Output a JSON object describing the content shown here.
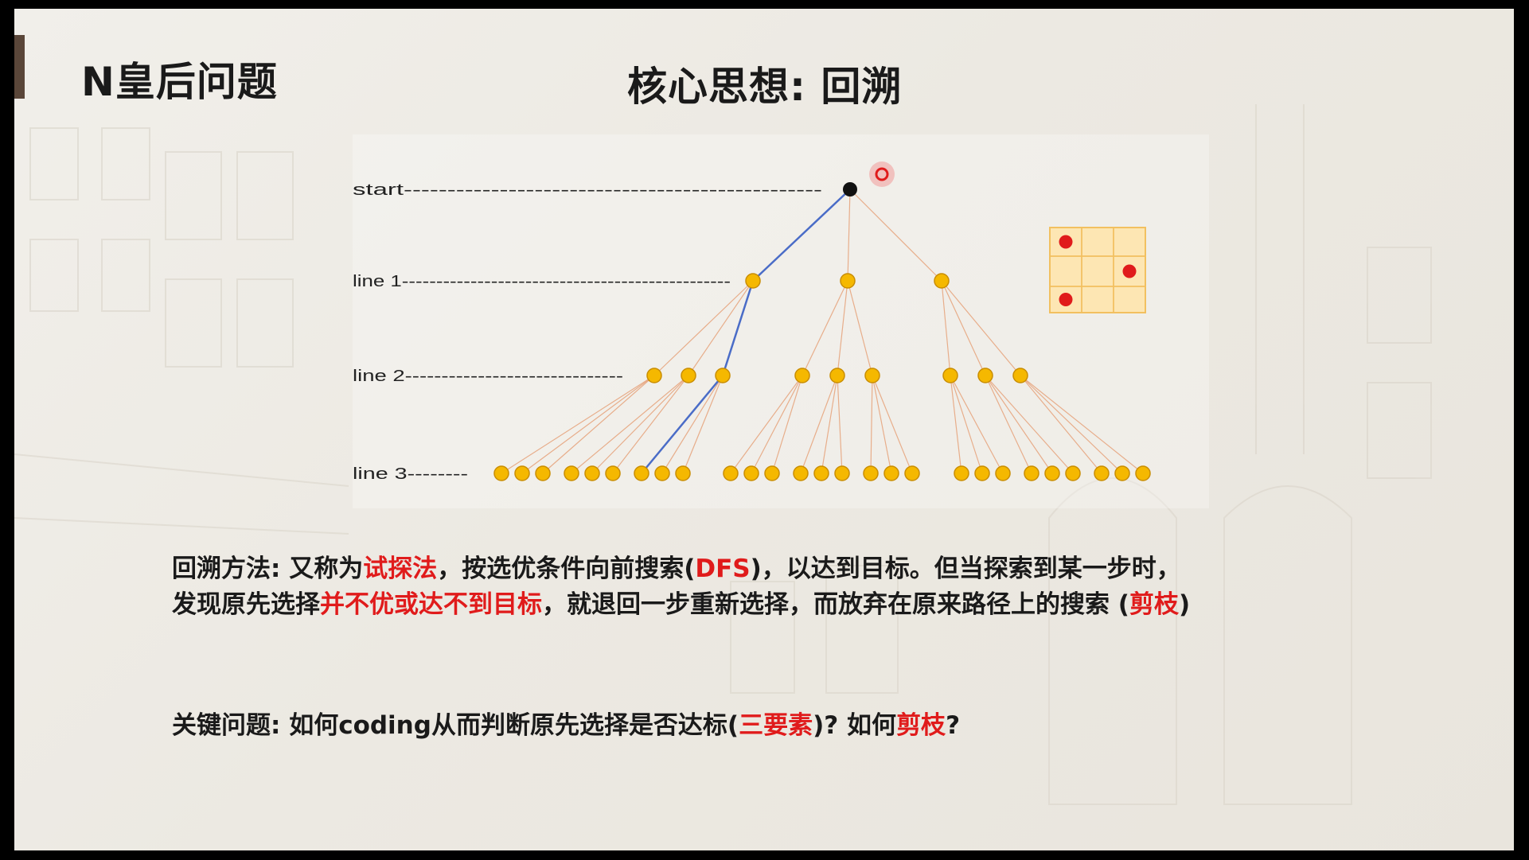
{
  "slide": {
    "title": "N皇后问题",
    "heading": "核心思想: 回溯"
  },
  "diagram": {
    "levels": [
      {
        "label": "start",
        "dashes": "------------------------------------------------"
      },
      {
        "label": "line 1",
        "dashes": "------------------------------------------------"
      },
      {
        "label": "line 2",
        "dashes": "------------------------------"
      },
      {
        "label": "line 3",
        "dashes": "--------"
      }
    ],
    "branching": 3,
    "depth": 3,
    "highlighted_path": [
      0,
      2,
      0
    ],
    "colors": {
      "node_fill": "#f5b800",
      "node_stroke": "#c98d00",
      "root_fill": "#111111",
      "edge": "#e6a27a",
      "path": "#4a6cc7",
      "queen": "#e01b1b",
      "board_fill": "#fde6b3",
      "board_stroke": "#f2c060"
    },
    "board": {
      "size": 3,
      "queens": [
        [
          0,
          0
        ],
        [
          1,
          2
        ],
        [
          2,
          0
        ]
      ]
    }
  },
  "paragraph": {
    "line1": [
      {
        "text": "回溯方法: 又称为",
        "hl": false
      },
      {
        "text": "试探法",
        "hl": true
      },
      {
        "text": "，按选优条件向前搜索(",
        "hl": false
      },
      {
        "text": "DFS",
        "hl": true
      },
      {
        "text": ")，以达到目标。但当探索到某一步时，",
        "hl": false
      }
    ],
    "line2": [
      {
        "text": "发现原先选择",
        "hl": false
      },
      {
        "text": "并不优或达不到目标",
        "hl": true
      },
      {
        "text": "，就退回一步重新选择，而放弃在原来路径上的搜索 (",
        "hl": false
      },
      {
        "text": "剪枝",
        "hl": true
      },
      {
        "text": ")",
        "hl": false
      }
    ]
  },
  "question": [
    {
      "text": "关键问题: 如何coding从而判断原先选择是否达标(",
      "hl": false
    },
    {
      "text": "三要素",
      "hl": true
    },
    {
      "text": ")? 如何",
      "hl": false
    },
    {
      "text": "剪枝",
      "hl": true
    },
    {
      "text": "?",
      "hl": false
    }
  ]
}
